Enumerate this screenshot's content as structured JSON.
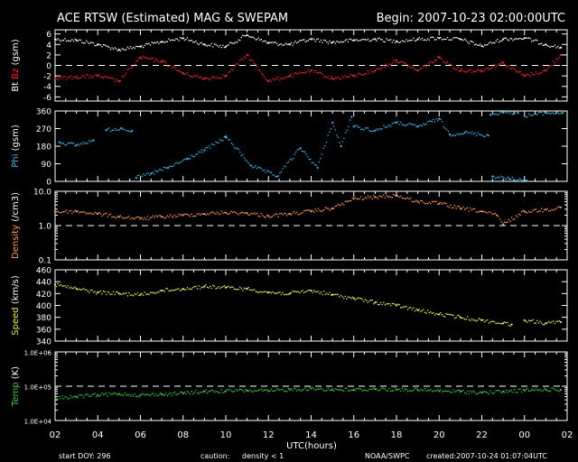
{
  "header": {
    "title": "ACE RTSW (Estimated) MAG & SWEPAM",
    "begin": "Begin: 2007-10-23 02:00:00UTC"
  },
  "footer": {
    "start_doy": "start DOY: 296",
    "caution": "caution:",
    "density_note": "density < 1",
    "source": "NOAA/SWPC",
    "created": "created:2007-10-24 01:07:04UTC"
  },
  "colors": {
    "bt": "#ffffff",
    "bz": "#ff2020",
    "phi": "#33bbee",
    "density": "#ff9944",
    "speed": "#eeee33",
    "temp": "#33cc33",
    "caution": "#ff9944"
  },
  "chart_data": {
    "type": "scatter",
    "xlabel": "UTC(hours)",
    "x_ticklabels": [
      "02",
      "04",
      "06",
      "08",
      "10",
      "12",
      "14",
      "16",
      "18",
      "20",
      "22",
      "00",
      "02"
    ],
    "xlim": [
      0,
      24
    ],
    "panels": [
      {
        "id": "mag",
        "ylabel_parts": [
          {
            "text": "Bt",
            "color": "#ffffff"
          },
          {
            "text": "Bz",
            "color": "#ff2020"
          },
          {
            "text": "(gsm)",
            "color": "#ffffff"
          }
        ],
        "scale": "linear",
        "ylim": [
          -6.8,
          6.8
        ],
        "yticks": [
          "-6",
          "-4",
          "-2",
          "0",
          "2",
          "4",
          "6"
        ],
        "ytick_values": [
          -6,
          -4,
          -2,
          0,
          2,
          4,
          6
        ],
        "dashed": [
          0
        ],
        "series": [
          {
            "name": "Bt",
            "color": "#ffffff",
            "segments": [
              {
                "x": [
                  0,
                  1,
                  2,
                  3,
                  4,
                  5,
                  6,
                  7,
                  8,
                  9,
                  10,
                  11,
                  12,
                  13,
                  14,
                  15,
                  16,
                  17,
                  18,
                  19,
                  20,
                  21,
                  22,
                  23,
                  23.7
                ],
                "y": [
                  5,
                  4.8,
                  4,
                  3,
                  3.6,
                  4.5,
                  5.2,
                  4,
                  3.6,
                  5.8,
                  4.3,
                  4,
                  5,
                  4.4,
                  4.8,
                  5,
                  4.6,
                  5,
                  5.2,
                  5,
                  3.7,
                  5,
                  5.2,
                  4,
                  3.4
                ]
              }
            ]
          },
          {
            "name": "Bz",
            "color": "#ff2020",
            "segments": [
              {
                "x": [
                  0,
                  1,
                  2,
                  3,
                  4,
                  5,
                  6,
                  7,
                  8,
                  9,
                  10,
                  11,
                  12,
                  13,
                  14,
                  15,
                  16,
                  17,
                  18,
                  19,
                  20,
                  21,
                  22,
                  23,
                  23.7
                ],
                "y": [
                  -2.5,
                  -2.2,
                  -2,
                  -3,
                  1.5,
                  0.8,
                  -1.5,
                  -2.5,
                  -2,
                  2,
                  -3,
                  -2,
                  -1,
                  -2.5,
                  -2,
                  -1,
                  1,
                  -1,
                  1.5,
                  -1,
                  -1,
                  0.5,
                  -2,
                  -1,
                  2
                ]
              }
            ]
          }
        ]
      },
      {
        "id": "phi",
        "ylabel_parts": [
          {
            "text": "Phi",
            "color": "#33bbee"
          },
          {
            "text": "(gsm)",
            "color": "#ffffff"
          }
        ],
        "scale": "linear",
        "ylim": [
          0,
          360
        ],
        "yticks": [
          "0",
          "90",
          "180",
          "270",
          "360"
        ],
        "ytick_values": [
          0,
          90,
          180,
          270,
          360
        ],
        "dashed": [],
        "series": [
          {
            "name": "Phi",
            "color": "#33bbee",
            "segments": [
              {
                "x": [
                  0.2,
                  1,
                  1.8
                ],
                "y": [
                  200,
                  185,
                  210
                ]
              },
              {
                "x": [
                  2.4,
                  3.1,
                  3.6
                ],
                "y": [
                  262,
                  272,
                  258
                ]
              },
              {
                "x": [
                  3.8,
                  4.5,
                  5.3,
                  6.2,
                  7,
                  8
                ],
                "y": [
                  18,
                  40,
                  70,
                  115,
                  160,
                  225
                ]
              },
              {
                "x": [
                  8,
                  9.2,
                  10.4,
                  11.5,
                  12.3,
                  13,
                  13.4,
                  13.9
                ],
                "y": [
                  230,
                  80,
                  25,
                  170,
                  70,
                  300,
                  180,
                  330
                ]
              },
              {
                "x": [
                  14,
                  15,
                  16,
                  17,
                  18,
                  18.5,
                  19.2,
                  20.3
                ],
                "y": [
                  280,
                  260,
                  300,
                  280,
                  320,
                  240,
                  250,
                  235
                ]
              },
              {
                "x": [
                  20.4,
                  21,
                  21.7
                ],
                "y": [
                  340,
                  355,
                  350
                ]
              },
              {
                "x": [
                  22,
                  23,
                  23.8
                ],
                "y": [
                  335,
                  350,
                  350
                ]
              },
              {
                "x": [
                  20.5,
                  21.3,
                  22.1
                ],
                "y": [
                  25,
                  12,
                  5
                ]
              }
            ]
          }
        ]
      },
      {
        "id": "density",
        "ylabel_parts": [
          {
            "text": "Density",
            "color": "#ff9944"
          },
          {
            "text": "(/cm3)",
            "color": "#ffffff"
          }
        ],
        "scale": "log",
        "ylim": [
          0.1,
          10.0
        ],
        "yticks": [
          "0.1",
          "1.0",
          "10.0"
        ],
        "ytick_values": [
          0.1,
          1.0,
          10.0
        ],
        "dashed": [
          1.0
        ],
        "series": [
          {
            "name": "Density",
            "color": "#ff9944",
            "segments": [
              {
                "x": [
                  0,
                  1,
                  2,
                  3,
                  4,
                  5,
                  6,
                  7,
                  8,
                  9,
                  10,
                  11,
                  12,
                  13,
                  14,
                  15,
                  16,
                  17,
                  18,
                  19,
                  20,
                  20.7,
                  21,
                  22,
                  23,
                  23.7
                ],
                "y": [
                  2.5,
                  2.6,
                  2.2,
                  1.8,
                  1.6,
                  1.8,
                  2.0,
                  2.2,
                  2.4,
                  2.3,
                  1.9,
                  2.2,
                  2.6,
                  3.2,
                  6.0,
                  6.8,
                  7.5,
                  5.0,
                  4.4,
                  3.2,
                  2.6,
                  2.0,
                  1.1,
                  2.6,
                  2.9,
                  3.4
                ]
              }
            ]
          }
        ]
      },
      {
        "id": "speed",
        "ylabel_parts": [
          {
            "text": "Speed",
            "color": "#eeee33"
          },
          {
            "text": "(km/s)",
            "color": "#ffffff"
          }
        ],
        "scale": "linear",
        "ylim": [
          340,
          460
        ],
        "yticks": [
          "340",
          "360",
          "380",
          "400",
          "420",
          "440",
          "460"
        ],
        "ytick_values": [
          340,
          360,
          380,
          400,
          420,
          440,
          460
        ],
        "dashed": [],
        "series": [
          {
            "name": "Speed",
            "color": "#eeee33",
            "segments": [
              {
                "x": [
                  0,
                  1,
                  2,
                  3,
                  4,
                  5,
                  6,
                  7,
                  8,
                  9,
                  10,
                  11,
                  12,
                  13,
                  14,
                  15,
                  16,
                  17,
                  18,
                  19,
                  20,
                  21,
                  21.4
                ],
                "y": [
                  435,
                  428,
                  422,
                  420,
                  418,
                  425,
                  428,
                  432,
                  430,
                  428,
                  422,
                  420,
                  425,
                  418,
                  412,
                  405,
                  400,
                  392,
                  385,
                  380,
                  375,
                  370,
                  368
                ]
              },
              {
                "x": [
                  22,
                  23,
                  23.7
                ],
                "y": [
                  375,
                  370,
                  372
                ]
              }
            ]
          }
        ]
      },
      {
        "id": "temp",
        "ylabel_parts": [
          {
            "text": "Temp",
            "color": "#33cc33"
          },
          {
            "text": "(K)",
            "color": "#ffffff"
          }
        ],
        "scale": "log",
        "ylim": [
          10000,
          1000000
        ],
        "yticks": [
          "1.0E+04",
          "1.0E+05",
          "1.0E+06"
        ],
        "ytick_values": [
          10000,
          100000,
          1000000
        ],
        "dashed": [
          100000
        ],
        "series": [
          {
            "name": "Temp",
            "color": "#33cc33",
            "segments": [
              {
                "x": [
                  0,
                  1,
                  2,
                  3,
                  4,
                  5,
                  6,
                  7,
                  8,
                  9,
                  10,
                  11,
                  12,
                  13,
                  14,
                  15,
                  16,
                  17,
                  18,
                  19,
                  20,
                  21,
                  22,
                  23,
                  23.7
                ],
                "y": [
                  45000,
                  50000,
                  55000,
                  60000,
                  55000,
                  58000,
                  62000,
                  70000,
                  72000,
                  75000,
                  72000,
                  80000,
                  85000,
                  80000,
                  78000,
                  82000,
                  80000,
                  78000,
                  72000,
                  70000,
                  65000,
                  70000,
                  75000,
                  80000,
                  78000
                ]
              }
            ]
          }
        ]
      }
    ]
  }
}
